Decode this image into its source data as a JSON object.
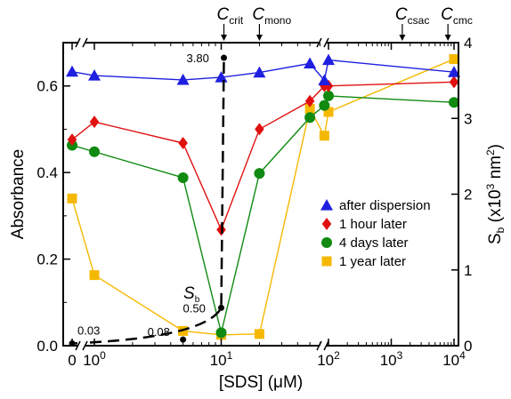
{
  "chart_data": {
    "type": "line",
    "xlabel": "[SDS] (μM)",
    "ylabel_left": "Absorbance",
    "ylabel_right": "S_b (x10^3 nm^2)",
    "x_scale": "log with broken axis (0 at origin, break before 10^0 and before ~10^2)",
    "ylim_left": [
      0,
      0.7
    ],
    "ylim_right": [
      0,
      4
    ],
    "x_ticks": [
      "0",
      "10^0",
      "10^1",
      "10^2",
      "10^3",
      "10^4"
    ],
    "y_ticks_left": [
      "0.0",
      "0.2",
      "0.4",
      "0.6"
    ],
    "y_ticks_right": [
      "0",
      "1",
      "2",
      "3",
      "4"
    ],
    "top_markers": [
      {
        "label": "C_crit",
        "x": 10.5
      },
      {
        "label": "C_mono",
        "x": 20
      },
      {
        "label": "C_csac",
        "x": 1500
      },
      {
        "label": "C_cmc",
        "x": 8000
      }
    ],
    "legend_position": "center-right",
    "series": [
      {
        "name": "after dispersion",
        "color": "#1f1fe0",
        "marker": "triangle",
        "x": [
          0,
          1,
          5,
          10,
          20,
          50,
          65,
          100,
          10000
        ],
        "y": [
          0.633,
          0.624,
          0.614,
          0.62,
          0.631,
          0.652,
          0.613,
          0.66,
          0.632
        ]
      },
      {
        "name": "1 hour later",
        "color": "#e01010",
        "marker": "diamond",
        "x": [
          0,
          1,
          5,
          10,
          20,
          50,
          65,
          100,
          10000
        ],
        "y": [
          0.476,
          0.517,
          0.468,
          0.268,
          0.5,
          0.565,
          0.6,
          0.6,
          0.609
        ]
      },
      {
        "name": "4 days later",
        "color": "#108a10",
        "marker": "circle",
        "x": [
          0,
          1,
          5,
          10,
          20,
          50,
          65,
          100,
          10000
        ],
        "y": [
          0.463,
          0.448,
          0.388,
          0.03,
          0.398,
          0.527,
          0.555,
          0.577,
          0.562
        ]
      },
      {
        "name": "1 year later",
        "color": "#f5b800",
        "marker": "square",
        "x": [
          0,
          1,
          5,
          10,
          20,
          50,
          65,
          100,
          10000
        ],
        "y": [
          0.34,
          0.163,
          0.034,
          0.025,
          0.027,
          0.547,
          0.485,
          0.54,
          0.662
        ]
      }
    ],
    "sb_curve": {
      "name": "S_b",
      "axis": "right",
      "style": "dashed black",
      "points": [
        {
          "x": 0,
          "y": 0.03,
          "label": "0.03"
        },
        {
          "x": 5,
          "y": 0.08,
          "label": "0.08"
        },
        {
          "x": 10,
          "y": 0.5,
          "label": "0.50"
        },
        {
          "x": 10.5,
          "y": 3.8,
          "label": "3.80"
        }
      ],
      "annotation": "S_b"
    }
  }
}
